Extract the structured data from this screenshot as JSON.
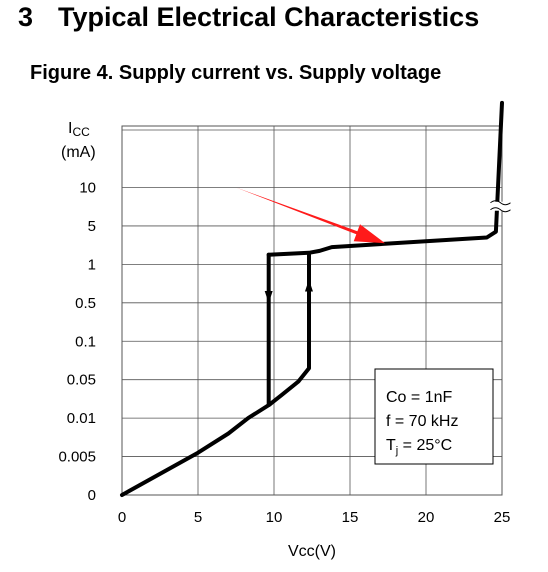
{
  "section": {
    "number": "3",
    "title": "Typical Electrical Characteristics"
  },
  "figure_title": "Figure 4. Supply current vs. Supply voltage",
  "chart_data": {
    "type": "line",
    "title": "Figure 4. Supply current vs. Supply voltage",
    "xlabel": "Vcc(V)",
    "ylabel_main": "I",
    "ylabel_sub": "CC",
    "ylabel_unit": "(mA)",
    "xlim": [
      0,
      25
    ],
    "x_ticks": [
      "0",
      "5",
      "10",
      "15",
      "20",
      "25"
    ],
    "x_tick_values": [
      0,
      5,
      10,
      15,
      20,
      25
    ],
    "y_ticks": [
      "0",
      "0.005",
      "0.01",
      "0.05",
      "0.1",
      "0.5",
      "1",
      "5",
      "10"
    ],
    "y_scale": "non-uniform (each gridline is one printed tick level; values below given as tick-level index 0–9)",
    "grid": true,
    "series": [
      {
        "path": [
          [
            0,
            0
          ],
          [
            5,
            1.1
          ],
          [
            7,
            1.6
          ],
          [
            8.3,
            2.0
          ],
          [
            9.7,
            2.35
          ]
        ]
      },
      {
        "path": [
          [
            9.7,
            2.35
          ],
          [
            10.5,
            2.6
          ],
          [
            11.6,
            2.95
          ],
          [
            12.3,
            3.3
          ],
          [
            12.3,
            6.25
          ]
        ]
      },
      {
        "path": [
          [
            9.65,
            6.25
          ],
          [
            12.3,
            6.3
          ],
          [
            13,
            6.35
          ],
          [
            13.8,
            6.45
          ],
          [
            24,
            6.7
          ],
          [
            24.6,
            6.85
          ],
          [
            25,
            10.2
          ]
        ]
      },
      {
        "path": [
          [
            9.65,
            6.25
          ],
          [
            9.65,
            2.35
          ]
        ]
      }
    ],
    "direction_arrows": [
      {
        "x": 9.65,
        "y": 5.15,
        "direction": "down"
      },
      {
        "x": 12.3,
        "y": 5.45,
        "direction": "up"
      }
    ],
    "axis_break": {
      "x": 24.9,
      "y": 7.5
    },
    "highlight_arrow": {
      "from": [
        7.5,
        8.0
      ],
      "to": [
        17.3,
        6.55
      ],
      "color": "#ff1a1a"
    },
    "annotations": {
      "co": "Co = 1nF",
      "f": "f = 70 kHz",
      "tj_main": "T",
      "tj_sub": "j",
      "tj_rest": " = 25°C"
    },
    "colors": {
      "line": "#000000",
      "grid": "#555555",
      "highlight": "#ff1a1a"
    }
  }
}
